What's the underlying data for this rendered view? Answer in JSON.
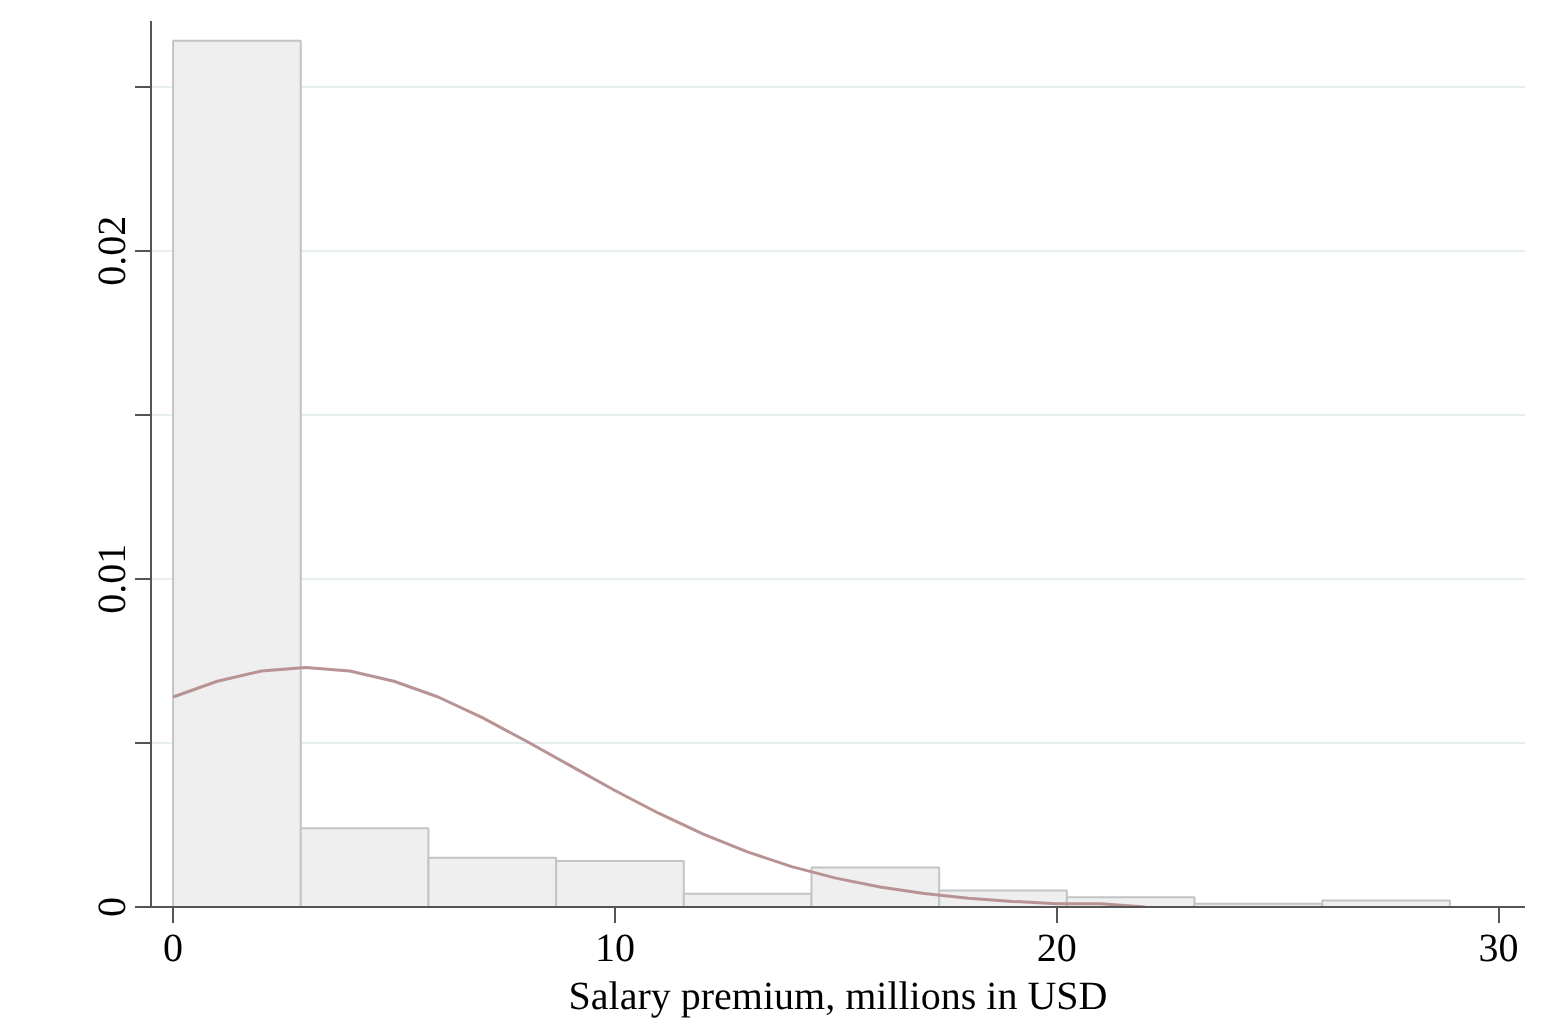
{
  "chart_data": {
    "type": "histogram",
    "xlabel": "Salary premium, millions in USD",
    "xlim": [
      -0.5,
      30.6
    ],
    "xticks": [
      0,
      10,
      20,
      30
    ],
    "ylim": [
      0,
      0.027
    ],
    "yticks": [
      0,
      {
        "value": 0.005,
        "label": null
      },
      0.01,
      {
        "value": 0.015,
        "label": null
      },
      0.02,
      {
        "value": 0.025,
        "label": null
      }
    ],
    "grid": "y",
    "series": [
      {
        "color": "#efefef",
        "bins": [
          0,
          2.89,
          5.78,
          8.67,
          11.56,
          14.45,
          17.34,
          20.23,
          23.12,
          26.01,
          28.9
        ],
        "values": [
          0.0264,
          0.0024,
          0.0015,
          0.0014,
          0.0004,
          0.0012,
          0.0005,
          0.0003,
          0.0001,
          0.0002
        ]
      },
      {
        "type": "line",
        "color": "#b89393",
        "x": [
          0,
          1,
          2,
          3,
          4,
          5,
          6,
          7,
          8,
          9,
          10,
          11,
          12,
          13,
          14,
          15,
          16,
          17,
          18,
          19,
          20,
          21,
          22
        ],
        "values": [
          0.0064,
          0.00688,
          0.00719,
          0.0073,
          0.00719,
          0.00688,
          0.0064,
          0.00577,
          0.00505,
          0.0043,
          0.00355,
          0.00285,
          0.00222,
          0.00168,
          0.00123,
          0.00088,
          0.00061,
          0.00041,
          0.00027,
          0.00017,
          0.0001,
          0.0001,
          0.0
        ]
      }
    ]
  }
}
